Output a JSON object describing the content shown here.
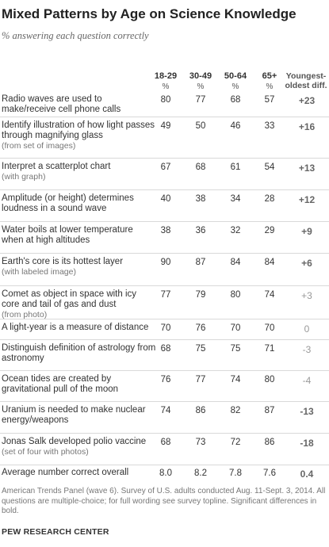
{
  "title": "Mixed Patterns by Age on Science Knowledge",
  "subtitle": "% answering each question correctly",
  "columns": [
    "18-29",
    "30-49",
    "50-64",
    "65+"
  ],
  "pct_symbol": "%",
  "diff_header": "Youngest-oldest diff.",
  "chart_data": {
    "type": "table",
    "title": "Mixed Patterns by Age on Science Knowledge",
    "subtitle": "% answering each question correctly",
    "categories": [
      "18-29",
      "30-49",
      "50-64",
      "65+"
    ],
    "diff_label": "Youngest-oldest diff.",
    "rows": [
      {
        "label": "Radio waves are used to make/receive cell phone calls",
        "note": "",
        "values": [
          80,
          77,
          68,
          57
        ],
        "diff": "+23",
        "significant": true
      },
      {
        "label": "Identify illustration of how light passes through magnifying glass",
        "note": "(from set of images)",
        "values": [
          49,
          50,
          46,
          33
        ],
        "diff": "+16",
        "significant": true
      },
      {
        "label": "Interpret a scatterplot chart",
        "note": "(with graph)",
        "values": [
          67,
          68,
          61,
          54
        ],
        "diff": "+13",
        "significant": true
      },
      {
        "label": "Amplitude (or height) determines loudness in a sound wave",
        "note": "",
        "values": [
          40,
          38,
          34,
          28
        ],
        "diff": "+12",
        "significant": true
      },
      {
        "label": "Water boils at lower temperature when at high altitudes",
        "note": "",
        "values": [
          38,
          36,
          32,
          29
        ],
        "diff": "+9",
        "significant": true
      },
      {
        "label": "Earth's core is its hottest layer",
        "note": "(with labeled image)",
        "values": [
          90,
          87,
          84,
          84
        ],
        "diff": "+6",
        "significant": true
      },
      {
        "label": "Comet as object in space with icy core and tail of gas and dust",
        "note": "(from photo)",
        "values": [
          77,
          79,
          80,
          74
        ],
        "diff": "+3",
        "significant": false
      },
      {
        "label": "A light-year is a measure of distance",
        "note": "",
        "values": [
          70,
          76,
          70,
          70
        ],
        "diff": "0",
        "significant": false
      },
      {
        "label": "Distinguish definition of astrology from astronomy",
        "note": "",
        "values": [
          68,
          75,
          75,
          71
        ],
        "diff": "-3",
        "significant": false
      },
      {
        "label": "Ocean tides are created by gravitational pull of the moon",
        "note": "",
        "values": [
          76,
          77,
          74,
          80
        ],
        "diff": "-4",
        "significant": false
      },
      {
        "label": "Uranium is needed to make nuclear energy/weapons",
        "note": "",
        "values": [
          74,
          86,
          82,
          87
        ],
        "diff": "-13",
        "significant": true
      },
      {
        "label": "Jonas Salk developed polio vaccine",
        "note": "(set of four with photos)",
        "values": [
          68,
          73,
          72,
          86
        ],
        "diff": "-18",
        "significant": true
      },
      {
        "label": "Average number correct overall",
        "note": "",
        "values": [
          "8.0",
          "8.2",
          "7.8",
          "7.6"
        ],
        "diff": "0.4",
        "significant": true
      }
    ]
  },
  "footnote": "American Trends Panel (wave 6). Survey of U.S. adults conducted Aug. 11-Sept. 3, 2014. All questions are multiple-choice; for full wording see survey topline. Significant differences in bold.",
  "source_org": "PEW RESEARCH CENTER"
}
